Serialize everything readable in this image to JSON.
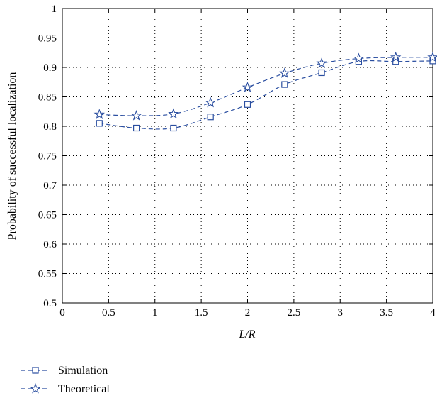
{
  "chart_data": {
    "type": "line",
    "title": "",
    "xlabel": "L/R",
    "ylabel": "Probability of successful localization",
    "xlim": [
      0,
      4
    ],
    "ylim": [
      0.5,
      1
    ],
    "xticks": [
      "0",
      "0.5",
      "1",
      "1.5",
      "2",
      "2.5",
      "3",
      "3.5",
      "4"
    ],
    "yticks": [
      "0.5",
      "0.55",
      "0.6",
      "0.65",
      "0.7",
      "0.75",
      "0.8",
      "0.85",
      "0.9",
      "0.95",
      "1"
    ],
    "grid": true,
    "legend_position": "bottom-left",
    "color": "#2a4ea0",
    "x": [
      0.4,
      0.8,
      1.2,
      1.6,
      2.0,
      2.4,
      2.8,
      3.2,
      3.6,
      4.0
    ],
    "series": [
      {
        "name": "Simulation",
        "marker": "square",
        "values": [
          0.805,
          0.797,
          0.797,
          0.816,
          0.837,
          0.871,
          0.891,
          0.91,
          0.91,
          0.911
        ]
      },
      {
        "name": "Theoretical",
        "marker": "star",
        "values": [
          0.82,
          0.818,
          0.821,
          0.84,
          0.866,
          0.89,
          0.907,
          0.915,
          0.917,
          0.917
        ]
      }
    ]
  }
}
